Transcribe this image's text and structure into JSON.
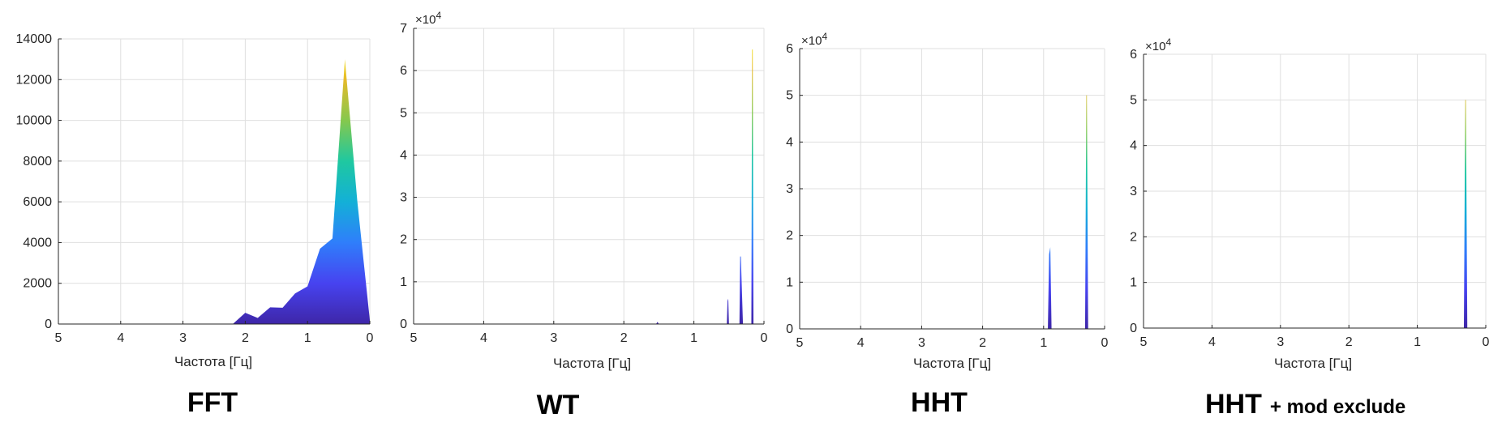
{
  "colors": {
    "grid": "#dfdfdf",
    "axis": "#262626",
    "colormap": [
      "#3e26a8",
      "#4743f0",
      "#2f7efb",
      "#13b0d7",
      "#1fc8a0",
      "#85c84d",
      "#e6ba2a",
      "#f9fb15"
    ]
  },
  "chart_data": [
    {
      "type": "area",
      "caption": "FFT",
      "caption_suffix": "",
      "xlabel": "Частота [Гц]",
      "ylabel": "",
      "x_reversed": true,
      "xlim": [
        0,
        5
      ],
      "ylim": [
        0,
        14000
      ],
      "xticks": [
        "5",
        "4",
        "3",
        "2",
        "1",
        "0"
      ],
      "yticks": [
        "0",
        "2000",
        "4000",
        "6000",
        "8000",
        "10000",
        "12000",
        "14000"
      ],
      "y_exponent": "",
      "grid": true,
      "x": [
        0,
        0.2,
        0.4,
        0.6,
        0.8,
        1.0,
        1.2,
        1.4,
        1.6,
        1.8,
        2.0,
        2.2,
        5.0
      ],
      "y": [
        200,
        6000,
        13000,
        4200,
        3700,
        1850,
        1500,
        800,
        820,
        300,
        550,
        0,
        0
      ]
    },
    {
      "type": "area",
      "caption": "WT",
      "caption_suffix": "",
      "xlabel": "Частота [Гц]",
      "ylabel": "",
      "x_reversed": true,
      "xlim": [
        0,
        5
      ],
      "ylim": [
        0,
        7
      ],
      "xticks": [
        "5",
        "4",
        "3",
        "2",
        "1",
        "0"
      ],
      "yticks": [
        "0",
        "1",
        "2",
        "3",
        "4",
        "5",
        "6",
        "7"
      ],
      "y_exponent": "10^4",
      "grid": true,
      "x": [
        0,
        0.15,
        0.16,
        0.17,
        0.18,
        0.19,
        0.3,
        0.33,
        0.34,
        0.35,
        0.5,
        0.51,
        0.52,
        0.53,
        1.5,
        1.52,
        1.54,
        5.0
      ],
      "y": [
        0,
        0,
        6.5,
        6.5,
        0,
        0,
        0,
        1.6,
        1.6,
        0,
        0,
        0.6,
        0.55,
        0,
        0,
        0.05,
        0,
        0
      ]
    },
    {
      "type": "area",
      "caption": "HHT",
      "caption_suffix": "",
      "xlabel": "Частота [Гц]",
      "ylabel": "",
      "x_reversed": true,
      "xlim": [
        0,
        5
      ],
      "ylim": [
        0,
        6
      ],
      "xticks": [
        "5",
        "4",
        "3",
        "2",
        "1",
        "0"
      ],
      "yticks": [
        "0",
        "1",
        "2",
        "3",
        "4",
        "5",
        "6"
      ],
      "y_exponent": "10^4",
      "grid": true,
      "x": [
        0,
        0.15,
        0.27,
        0.29,
        0.3,
        0.32,
        0.8,
        0.87,
        0.89,
        0.91,
        0.93,
        5.0
      ],
      "y": [
        0,
        0,
        0,
        5.0,
        5.0,
        0,
        0,
        0,
        1.75,
        1.6,
        0,
        0
      ]
    },
    {
      "type": "area",
      "caption": "HHT",
      "caption_suffix": "+ mod exclude",
      "xlabel": "Частота [Гц]",
      "ylabel": "",
      "x_reversed": true,
      "xlim": [
        0,
        5
      ],
      "ylim": [
        0,
        6
      ],
      "xticks": [
        "5",
        "4",
        "3",
        "2",
        "1",
        "0"
      ],
      "yticks": [
        "0",
        "1",
        "2",
        "3",
        "4",
        "5",
        "6"
      ],
      "y_exponent": "10^4",
      "grid": true,
      "x": [
        0,
        0.27,
        0.29,
        0.3,
        0.32,
        5.0
      ],
      "y": [
        0,
        0,
        5.0,
        5.0,
        0,
        0
      ]
    }
  ]
}
